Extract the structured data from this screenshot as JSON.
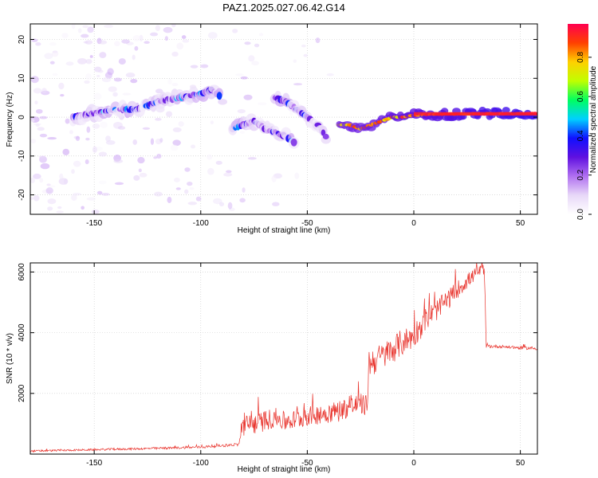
{
  "title": "PAZ1.2025.027.06.42.G14",
  "colorbar": {
    "label": "Normalized spectral amplitude",
    "ticks": [
      "0.0",
      "0.2",
      "0.4",
      "0.6",
      "0.8"
    ],
    "tick_values": [
      0.0,
      0.2,
      0.4,
      0.6,
      0.8
    ],
    "range": [
      0,
      0.97
    ],
    "colors": [
      "#ffffff",
      "#e8d8f8",
      "#b070f0",
      "#6010e0",
      "#1010ff",
      "#00d0ff",
      "#00ff60",
      "#c0ff00",
      "#ffd000",
      "#ff4000",
      "#ff0050"
    ]
  },
  "chart_data": [
    {
      "type": "heatmap",
      "xlabel": "Height of straight line (km)",
      "ylabel": "Frequency (Hz)",
      "xlim": [
        -180,
        58
      ],
      "ylim": [
        -25,
        24
      ],
      "xticks": [
        -150,
        -100,
        -50,
        0,
        50
      ],
      "xtick_labels": [
        "-150",
        "-100",
        "-50",
        "0",
        "50"
      ],
      "yticks": [
        -20,
        -10,
        0,
        10,
        20
      ],
      "ytick_labels": [
        "-20",
        "-10",
        "0",
        "10",
        "20"
      ],
      "grid": true,
      "ridge": {
        "segments": [
          {
            "x": [
              -160,
              -150,
              -140,
              -130,
              -120,
              -110,
              -100,
              -95,
              -90
            ],
            "y": [
              0,
              1,
              2,
              2,
              4,
              5,
              6,
              7,
              5
            ]
          },
          {
            "x": [
              -85,
              -80,
              -75,
              -70,
              -65,
              -60,
              -55
            ],
            "y": [
              -3,
              -2,
              -1,
              -3,
              -4,
              -5,
              -7
            ]
          },
          {
            "x": [
              -65,
              -60,
              -55,
              -50,
              -45,
              -40
            ],
            "y": [
              5,
              4,
              2,
              0,
              -2,
              -6
            ]
          },
          {
            "x": [
              -35,
              -30,
              -25,
              -20,
              -15,
              -10,
              -5,
              0,
              10,
              20,
              30,
              40,
              50,
              58
            ],
            "y": [
              -2,
              -2,
              -3,
              -2,
              -1,
              0,
              0,
              0.5,
              0.7,
              0.8,
              0.9,
              0.9,
              0.9,
              1
            ]
          }
        ],
        "peak_amplitude": 0.97
      }
    },
    {
      "type": "line",
      "xlabel": "Height of straight line (km)",
      "ylabel": "SNR (10 * v/v)",
      "xlim": [
        -180,
        58
      ],
      "ylim": [
        0,
        6300
      ],
      "xticks": [
        -150,
        -100,
        -50,
        0,
        50
      ],
      "xtick_labels": [
        "-150",
        "-100",
        "-50",
        "0",
        "50"
      ],
      "yticks": [
        2000,
        4000,
        6000
      ],
      "ytick_labels": [
        "2000",
        "4000",
        "6000"
      ],
      "grid": true,
      "series": [
        {
          "color": "#e8312a",
          "x": [
            -180,
            -160,
            -140,
            -120,
            -100,
            -90,
            -82,
            -81,
            -75,
            -70,
            -65,
            -60,
            -55,
            -50,
            -45,
            -40,
            -35,
            -30,
            -25,
            -22,
            -21,
            -15,
            -10,
            -5,
            0,
            5,
            10,
            15,
            20,
            25,
            30,
            33,
            34,
            40,
            50,
            58
          ],
          "y": [
            100,
            130,
            160,
            190,
            230,
            280,
            320,
            900,
            1000,
            1100,
            1200,
            1050,
            1150,
            1250,
            1300,
            1350,
            1450,
            1550,
            1650,
            1600,
            3000,
            3200,
            3450,
            3700,
            3900,
            4400,
            4700,
            5000,
            5400,
            5700,
            6000,
            6100,
            3550,
            3550,
            3500,
            3480
          ],
          "noise": [
            60,
            60,
            70,
            70,
            80,
            90,
            100,
            700,
            700,
            700,
            650,
            650,
            650,
            650,
            650,
            650,
            700,
            700,
            700,
            700,
            1000,
            900,
            900,
            900,
            800,
            800,
            700,
            700,
            600,
            500,
            400,
            350,
            120,
            100,
            100,
            100
          ]
        }
      ]
    }
  ]
}
